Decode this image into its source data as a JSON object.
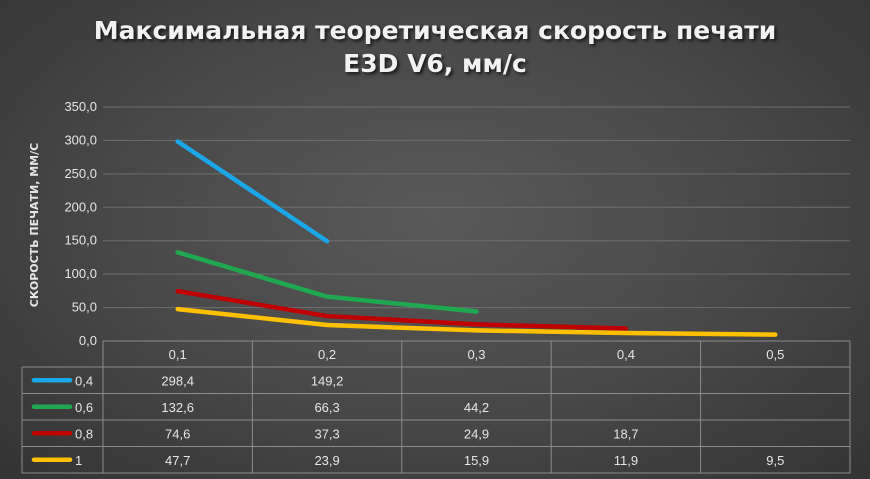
{
  "colors": {
    "series_0_4": "#1aa7e8",
    "series_0_6": "#1fa84f",
    "series_0_8": "#c00000",
    "series_1": "#ffc000",
    "gridline": "#6e6e6e",
    "table_border": "#8c8c8c"
  },
  "chart_data": {
    "type": "line",
    "title": [
      "Максимальная теоретическая скорость печати",
      "E3D V6, мм/с"
    ],
    "ylabel": "СКОРОСТЬ ПЕЧАТИ, ММ/С",
    "xlabel": "",
    "ylim": [
      0,
      350
    ],
    "y_ticks": [
      "0,0",
      "50,0",
      "100,0",
      "150,0",
      "200,0",
      "250,0",
      "300,0",
      "350,0"
    ],
    "categories": [
      "0,1",
      "0,2",
      "0,3",
      "0,4",
      "0,5"
    ],
    "grid": "horizontal",
    "legend": "data-table",
    "series": [
      {
        "name": "0,4",
        "color": "#1aa7e8",
        "values": [
          298.4,
          149.2,
          null,
          null,
          null
        ],
        "labels": [
          "298,4",
          "149,2",
          "",
          "",
          ""
        ]
      },
      {
        "name": "0,6",
        "color": "#1fa84f",
        "values": [
          132.6,
          66.3,
          44.2,
          null,
          null
        ],
        "labels": [
          "132,6",
          "66,3",
          "44,2",
          "",
          ""
        ]
      },
      {
        "name": "0,8",
        "color": "#c00000",
        "values": [
          74.6,
          37.3,
          24.9,
          18.7,
          null
        ],
        "labels": [
          "74,6",
          "37,3",
          "24,9",
          "18,7",
          ""
        ]
      },
      {
        "name": "1",
        "color": "#ffc000",
        "values": [
          47.7,
          23.9,
          15.9,
          11.9,
          9.5
        ],
        "labels": [
          "47,7",
          "23,9",
          "15,9",
          "11,9",
          "9,5"
        ]
      }
    ]
  }
}
